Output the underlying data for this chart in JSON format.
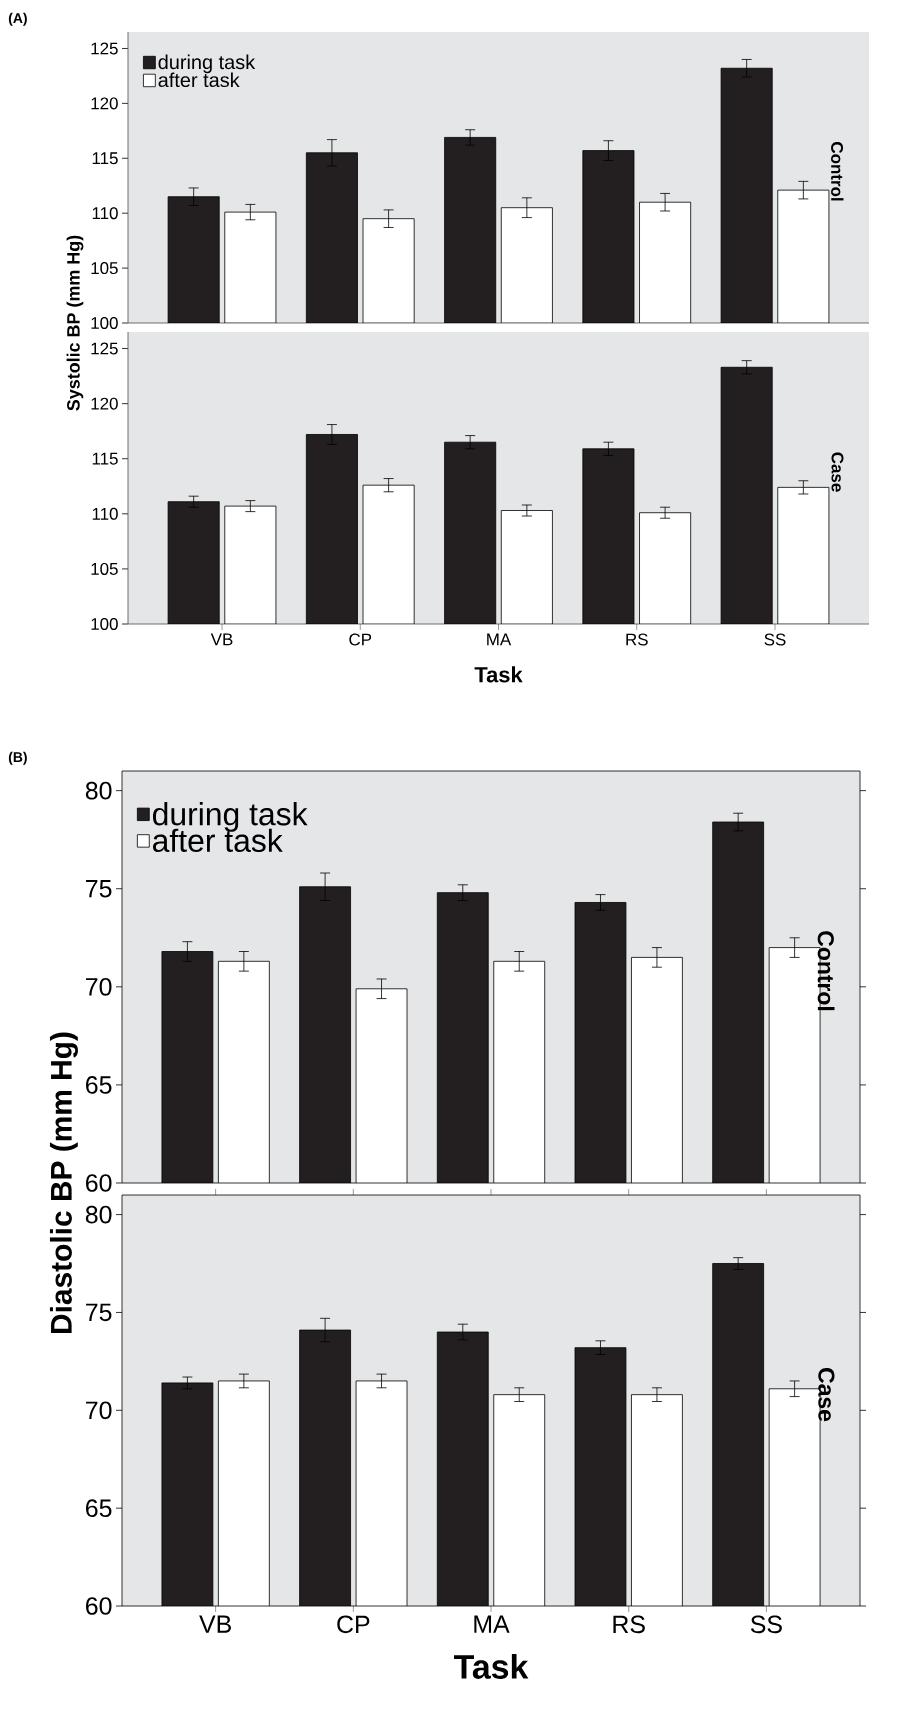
{
  "chart_data": [
    {
      "type": "bar",
      "title": "Control",
      "ylabel": "Systolic BP (mm Hg)",
      "annotations": [
        "(A)"
      ],
      "categories": [
        null,
        null,
        null,
        null,
        null
      ],
      "ylim": [
        100,
        126.5
      ],
      "yticks": [
        100,
        105,
        110,
        115,
        120,
        125
      ],
      "legend": "top left",
      "series": [
        {
          "name": "during task",
          "color": "#231f20",
          "values": [
            111.5,
            115.5,
            116.9,
            115.7,
            123.2
          ],
          "errors": [
            0.8,
            1.2,
            0.7,
            0.9,
            0.8
          ]
        },
        {
          "name": "after task",
          "color": "#ffffff",
          "values": [
            110.1,
            109.5,
            110.5,
            111.0,
            112.1
          ],
          "errors": [
            0.7,
            0.8,
            0.9,
            0.8,
            0.8
          ]
        }
      ]
    },
    {
      "type": "bar",
      "title": "Case",
      "xlabel": "Task",
      "categories": [
        "VB",
        "CP",
        "MA",
        "RS",
        "SS"
      ],
      "ylim": [
        100,
        126.5
      ],
      "yticks": [
        100,
        105,
        110,
        115,
        120,
        125
      ],
      "series": [
        {
          "color": "#231f20",
          "values": [
            111.1,
            117.2,
            116.5,
            115.9,
            123.3
          ],
          "errors": [
            0.5,
            0.9,
            0.6,
            0.6,
            0.6
          ]
        },
        {
          "color": "#ffffff",
          "values": [
            110.7,
            112.6,
            110.3,
            110.1,
            112.4
          ],
          "errors": [
            0.5,
            0.6,
            0.5,
            0.5,
            0.6
          ]
        }
      ]
    },
    {
      "type": "bar",
      "title": "Control",
      "ylabel": "Diastolic BP (mm Hg)",
      "annotations": [
        "(B)"
      ],
      "categories": [
        null,
        null,
        null,
        null,
        null
      ],
      "ylim": [
        60,
        81
      ],
      "yticks": [
        60,
        65,
        70,
        75,
        80
      ],
      "legend": "top left",
      "series": [
        {
          "name": "during task",
          "color": "#231f20",
          "values": [
            71.8,
            75.1,
            74.8,
            74.3,
            78.4
          ],
          "errors": [
            0.5,
            0.7,
            0.4,
            0.4,
            0.45
          ]
        },
        {
          "name": "after task",
          "color": "#ffffff",
          "values": [
            71.3,
            69.9,
            71.3,
            71.5,
            72.0
          ],
          "errors": [
            0.5,
            0.5,
            0.5,
            0.5,
            0.5
          ]
        }
      ]
    },
    {
      "type": "bar",
      "title": "Case",
      "xlabel": "Task",
      "categories": [
        "VB",
        "CP",
        "MA",
        "RS",
        "SS"
      ],
      "ylim": [
        60,
        81
      ],
      "yticks": [
        60,
        65,
        70,
        75,
        80
      ],
      "series": [
        {
          "color": "#231f20",
          "values": [
            71.4,
            74.1,
            74.0,
            73.2,
            77.5
          ],
          "errors": [
            0.3,
            0.6,
            0.4,
            0.35,
            0.3
          ]
        },
        {
          "color": "#ffffff",
          "values": [
            71.5,
            71.5,
            70.8,
            70.8,
            71.1
          ],
          "errors": [
            0.35,
            0.35,
            0.35,
            0.35,
            0.4
          ]
        }
      ]
    }
  ]
}
